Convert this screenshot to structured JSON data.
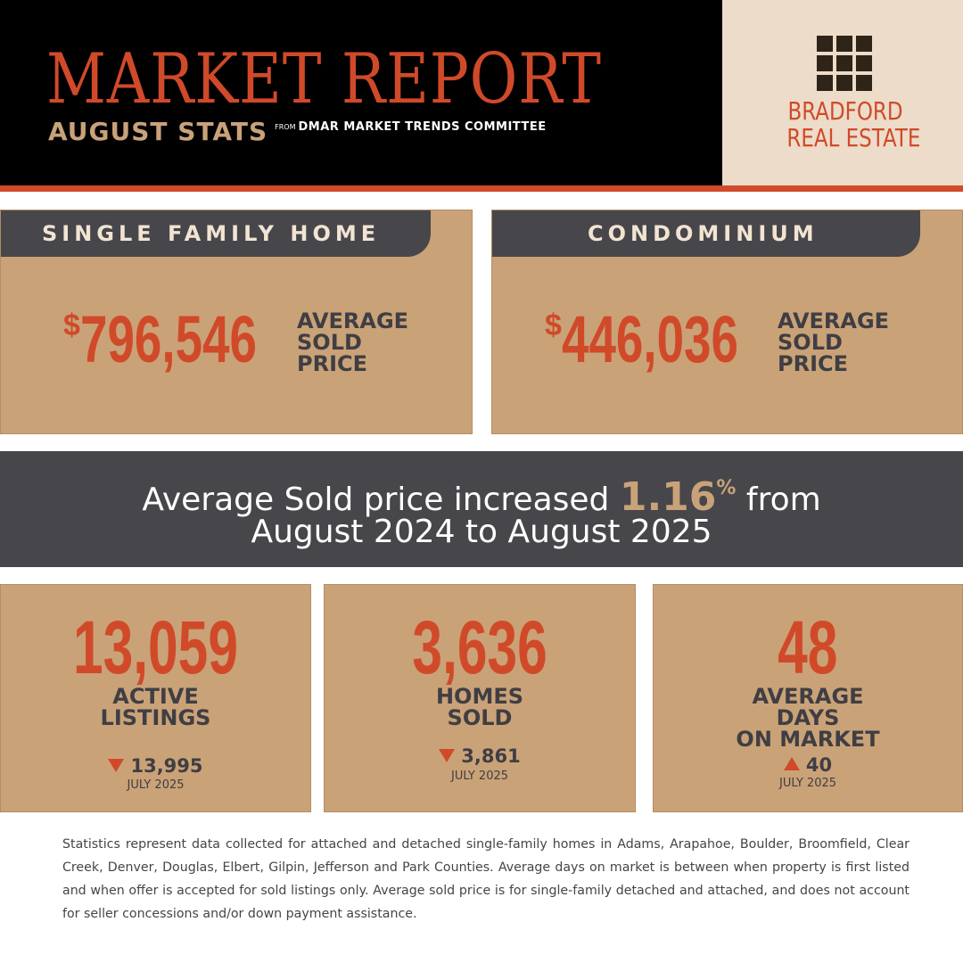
{
  "header": {
    "title": "MARKET REPORT",
    "subtitle": "AUGUST STATS",
    "source_prefix": "FROM",
    "source": "DMAR MARKET TRENDS COMMITTEE",
    "logo_line1": "BRADFORD",
    "logo_line2": "REAL ESTATE"
  },
  "cards": {
    "single_family": {
      "heading": "SINGLE FAMILY HOME",
      "currency": "$",
      "price": "796,546",
      "caption_line1": "AVERAGE",
      "caption_line2": "SOLD",
      "caption_line3": "PRICE"
    },
    "condo": {
      "heading": "CONDOMINIUM",
      "currency": "$",
      "price": "446,036",
      "caption_line1": "AVERAGE",
      "caption_line2": "SOLD",
      "caption_line3": "PRICE"
    }
  },
  "banner": {
    "text_before": "Average Sold price increased ",
    "percent": "1.16",
    "percent_sign": "%",
    "text_after": " from",
    "line2": "August 2024 to August 2025"
  },
  "stats": [
    {
      "value": "13,059",
      "label_line1": "ACTIVE",
      "label_line2": "LISTINGS",
      "label_line3": "",
      "trend": "down",
      "previous": "13,995",
      "previous_period": "JULY 2025"
    },
    {
      "value": "3,636",
      "label_line1": "HOMES",
      "label_line2": "SOLD",
      "label_line3": "",
      "trend": "down",
      "previous": "3,861",
      "previous_period": "JULY 2025"
    },
    {
      "value": "48",
      "label_line1": "AVERAGE",
      "label_line2": "DAYS",
      "label_line3": "ON MARKET",
      "trend": "up",
      "previous": "40",
      "previous_period": "JULY 2025"
    }
  ],
  "footnote": "Statistics represent data collected for attached and detached single-family homes in Adams, Arapahoe, Boulder, Broomfield, Clear Creek, Denver, Douglas, Elbert, Gilpin, Jefferson and Park Counties. Average days on market is between when property is first listed and when offer is accepted for sold listings only. Average sold price is for single-family detached and attached, and does not account for seller concessions and/or down payment assistance.",
  "colors": {
    "accent": "#d04a2a",
    "tan": "#caa277",
    "charcoal": "#47464b",
    "header_beige": "#ecdcc9"
  },
  "icons": {
    "logo": "window-grid-icon",
    "trend_down": "triangle-down-icon",
    "trend_up": "triangle-up-icon"
  }
}
